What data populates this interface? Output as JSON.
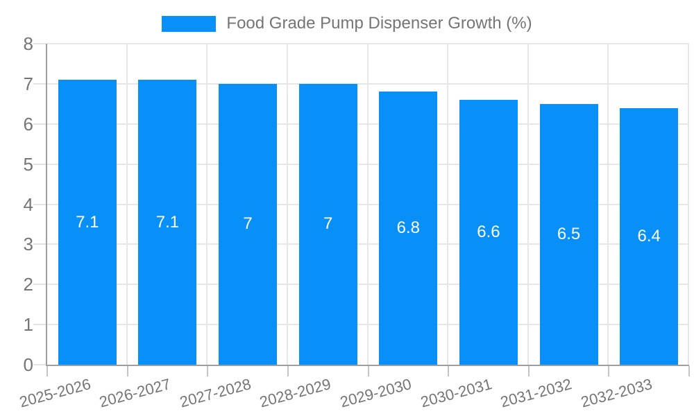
{
  "chart_data": {
    "type": "bar",
    "title": "Food Grade Pump Dispenser Growth (%)",
    "series_name": "Food Grade Pump Dispenser Growth (%)",
    "categories": [
      "2025-2026",
      "2026-2027",
      "2027-2028",
      "2028-2029",
      "2029-2030",
      "2030-2031",
      "2031-2032",
      "2032-2033"
    ],
    "values": [
      7.1,
      7.1,
      7,
      7,
      6.8,
      6.6,
      6.5,
      6.4
    ],
    "value_labels": [
      "7.1",
      "7.1",
      "7",
      "7",
      "6.8",
      "6.6",
      "6.5",
      "6.4"
    ],
    "xlabel": "",
    "ylabel": "",
    "ylim": [
      0,
      8
    ],
    "y_ticks": [
      0,
      1,
      2,
      3,
      4,
      5,
      6,
      7,
      8
    ],
    "grid": true,
    "legend_position": "top",
    "colors": {
      "bar": "#0990f8",
      "value_label": "#ffffff",
      "tick_text": "#757575",
      "title_text": "#757575",
      "gridline": "#e6e6e6",
      "axis_line": "#9e9e9e",
      "background": "#ffffff"
    }
  },
  "legend": {
    "label": "Food Grade Pump Dispenser Growth (%)"
  }
}
